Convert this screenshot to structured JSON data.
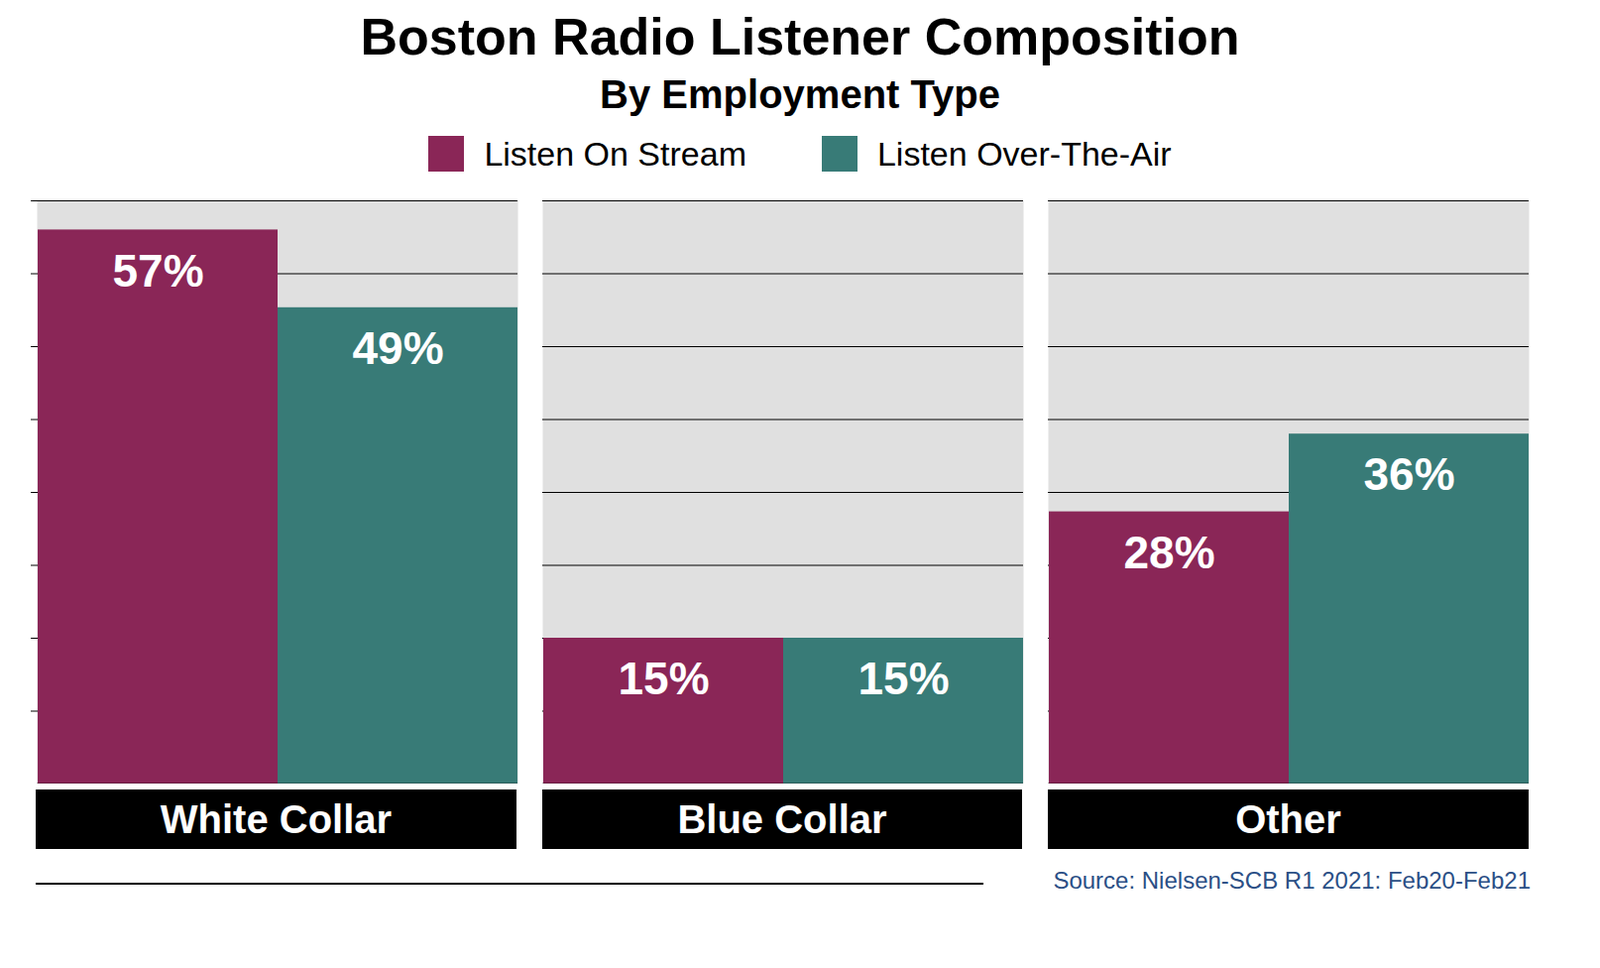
{
  "chart_data": {
    "type": "bar",
    "title": "Boston Radio Listener Composition",
    "subtitle": "By Employment Type",
    "source": "Source: Nielsen-SCB R1 2021: Feb20-Feb21",
    "categories": [
      "White Collar",
      "Blue Collar",
      "Other"
    ],
    "series": [
      {
        "name": "Listen On Stream",
        "color": "#8a2657",
        "values": [
          57,
          15,
          28
        ],
        "value_labels": [
          "57%",
          "15%",
          "28%"
        ]
      },
      {
        "name": "Listen Over-The-Air",
        "color": "#387b77",
        "values": [
          49,
          15,
          36
        ],
        "value_labels": [
          "49%",
          "15%",
          "36%"
        ]
      }
    ],
    "ylim": [
      0,
      60
    ],
    "yticks": [
      0,
      7.5,
      15,
      22.5,
      30,
      37.5,
      45,
      52.5,
      60
    ],
    "grid": true,
    "legend": "top",
    "data_labels": true,
    "tick_labels": "x"
  }
}
